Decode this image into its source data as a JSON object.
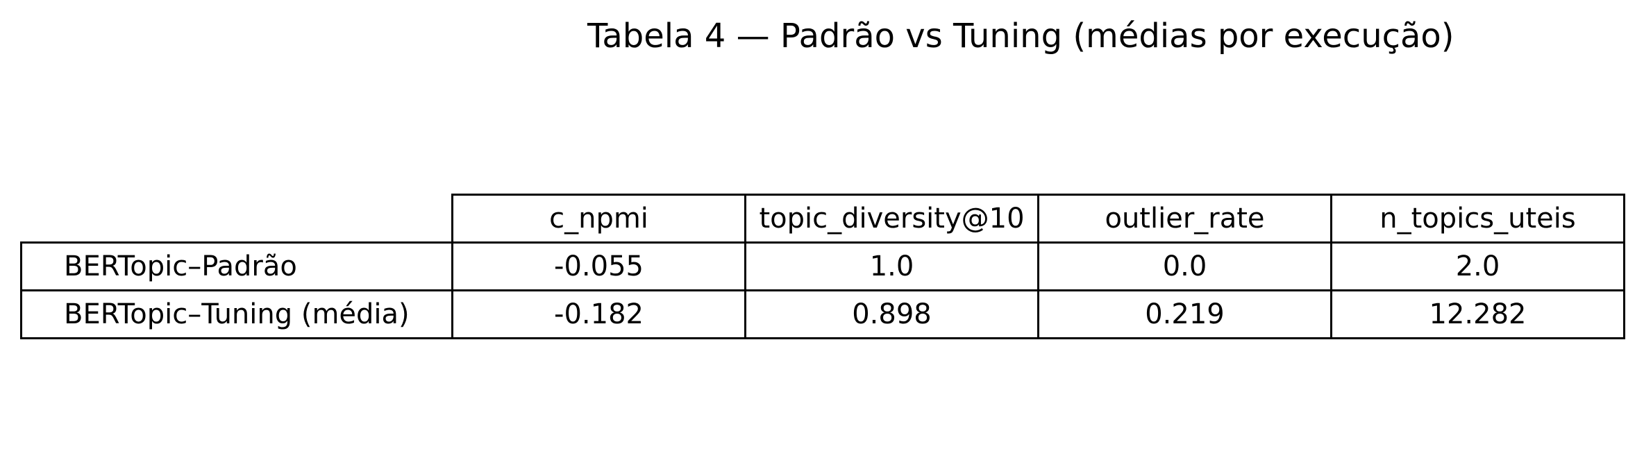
{
  "chart_data": {
    "type": "table",
    "title": "Tabela 4 — Padrão vs Tuning (médias por execução)",
    "columns": [
      "c_npmi",
      "topic_diversity@10",
      "outlier_rate",
      "n_topics_uteis"
    ],
    "rows": [
      {
        "label": "BERTopic–Padrão",
        "values": [
          "-0.055",
          "1.0",
          "0.0",
          "2.0"
        ]
      },
      {
        "label": "BERTopic–Tuning (média)",
        "values": [
          "-0.182",
          "0.898",
          "0.219",
          "12.282"
        ]
      }
    ]
  }
}
